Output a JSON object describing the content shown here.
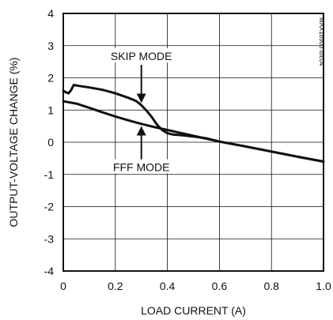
{
  "chart_data": {
    "type": "line",
    "title": "",
    "xlabel": "LOAD CURRENT (A)",
    "ylabel": "OUTPUT-VOLTAGE CHANGE (%)",
    "xlim": [
      0,
      1.0
    ],
    "ylim": [
      -4,
      4
    ],
    "x_ticks": [
      0,
      0.2,
      0.4,
      0.6,
      0.8,
      1.0
    ],
    "x_tick_labels": [
      "0",
      "0.2",
      "0.4",
      "0.6",
      "0.8",
      "1.0"
    ],
    "y_ticks": [
      4,
      3,
      2,
      1,
      0,
      -1,
      -2,
      -3,
      -4
    ],
    "y_tick_labels": [
      "4",
      "3",
      "2",
      "1",
      "0",
      "-1",
      "-2",
      "-3",
      "-4"
    ],
    "grid": true,
    "watermark": "MAX16903 toc04",
    "series": [
      {
        "name": "SKIP MODE",
        "x": [
          0.0,
          0.01,
          0.02,
          0.03,
          0.04,
          0.06,
          0.1,
          0.15,
          0.2,
          0.25,
          0.28,
          0.3,
          0.32,
          0.34,
          0.36,
          0.38,
          0.4,
          0.42,
          0.45,
          0.5,
          0.55,
          0.6,
          0.7,
          0.8,
          0.9,
          1.0
        ],
        "y": [
          1.6,
          1.55,
          1.52,
          1.62,
          1.78,
          1.75,
          1.7,
          1.63,
          1.52,
          1.38,
          1.28,
          1.15,
          0.98,
          0.78,
          0.55,
          0.38,
          0.28,
          0.24,
          0.22,
          0.18,
          0.12,
          0.02,
          -0.13,
          -0.29,
          -0.45,
          -0.6
        ]
      },
      {
        "name": "FFF MODE",
        "x": [
          0.0,
          0.05,
          0.1,
          0.15,
          0.2,
          0.25,
          0.3,
          0.35,
          0.4,
          0.45,
          0.5,
          0.55,
          0.6,
          0.7,
          0.8,
          0.9,
          1.0
        ],
        "y": [
          1.27,
          1.2,
          1.07,
          0.93,
          0.8,
          0.68,
          0.57,
          0.47,
          0.38,
          0.29,
          0.2,
          0.11,
          0.02,
          -0.13,
          -0.29,
          -0.45,
          -0.6
        ]
      }
    ],
    "annotations": [
      {
        "text": "SKIP MODE",
        "points_to": "SKIP MODE",
        "target_x": 0.3,
        "target_y": 1.15,
        "label_x": 0.3,
        "label_y": 2.6
      },
      {
        "text": "FFF MODE",
        "points_to": "FFF MODE",
        "target_x": 0.3,
        "target_y": 0.57,
        "label_x": 0.3,
        "label_y": -0.85
      }
    ]
  }
}
